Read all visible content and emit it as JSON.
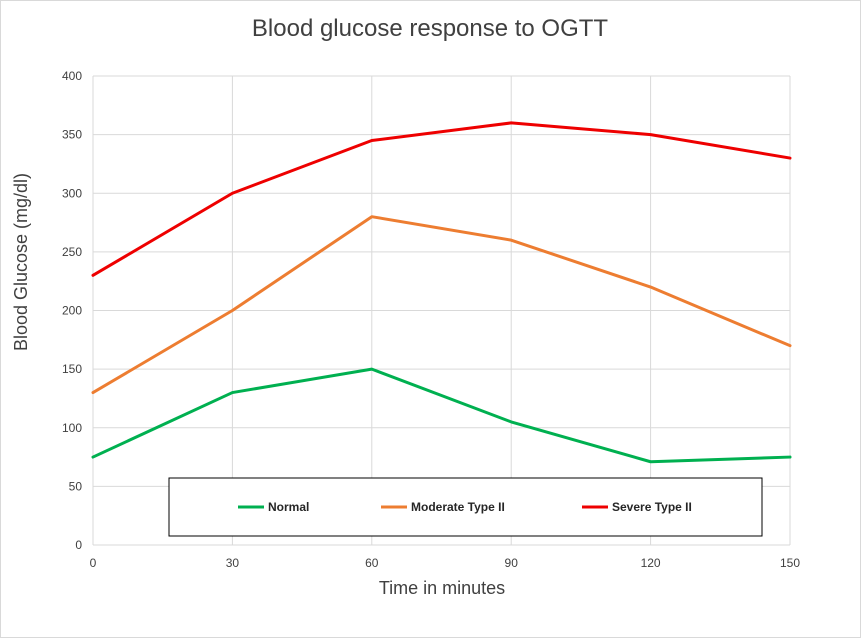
{
  "chart_data": {
    "type": "line",
    "title": "Blood glucose response to OGTT",
    "xlabel": "Time in minutes",
    "ylabel": "Blood Glucose (mg/dl)",
    "x": [
      0,
      30,
      60,
      90,
      120,
      150
    ],
    "x_tick_labels": [
      "0",
      "30",
      "60",
      "90",
      "120",
      "150"
    ],
    "y_tick_labels": [
      "0",
      "50",
      "100",
      "150",
      "200",
      "250",
      "300",
      "350",
      "400"
    ],
    "xlim": [
      0,
      150
    ],
    "ylim": [
      0,
      400
    ],
    "grid": true,
    "legend_position": "bottom-inside",
    "series": [
      {
        "name": "Normal",
        "color": "#00b050",
        "values": [
          75,
          130,
          150,
          105,
          71,
          75
        ]
      },
      {
        "name": "Moderate Type II",
        "color": "#ed7d31",
        "values": [
          130,
          200,
          280,
          260,
          220,
          170
        ]
      },
      {
        "name": "Severe Type II",
        "color": "#ee0000",
        "values": [
          230,
          300,
          345,
          360,
          350,
          330
        ]
      }
    ]
  }
}
